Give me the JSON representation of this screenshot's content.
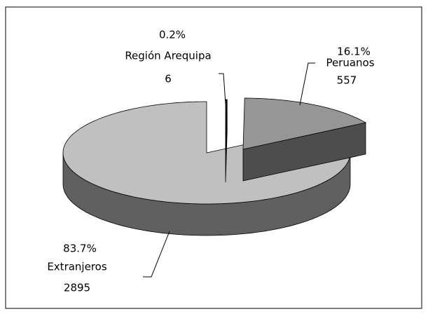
{
  "chart_data": {
    "type": "pie",
    "categories": [
      "Región Arequipa",
      "Peruanos",
      "Extranjeros"
    ],
    "values": [
      6,
      557,
      2895
    ],
    "percent_labels": [
      "0.2%",
      "16.1%",
      "83.7%"
    ],
    "colors": [
      "#1a1a1a",
      "#969696",
      "#c0c0c0"
    ],
    "side_colors": [
      "#000000",
      "#4d4d4d",
      "#606060"
    ]
  }
}
